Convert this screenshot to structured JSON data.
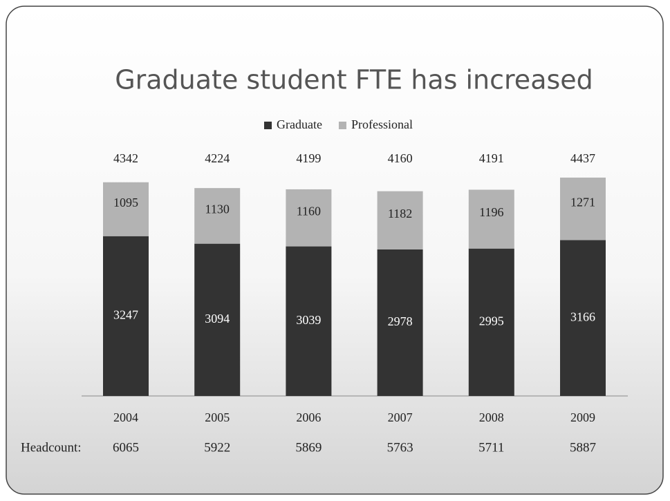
{
  "chart_data": {
    "type": "stacked-bar",
    "title": "Graduate student FTE has increased",
    "categories": [
      "2004",
      "2005",
      "2006",
      "2007",
      "2008",
      "2009"
    ],
    "series": [
      {
        "name": "Graduate",
        "color": "#333333",
        "values": [
          3247,
          3094,
          3039,
          2978,
          2995,
          3166
        ]
      },
      {
        "name": "Professional",
        "color": "#b3b3b3",
        "values": [
          1095,
          1130,
          1160,
          1182,
          1196,
          1271
        ]
      }
    ],
    "totals": [
      4342,
      4224,
      4199,
      4160,
      4191,
      4437
    ],
    "headcount": {
      "label": "Headcount:",
      "values": [
        6065,
        5922,
        5869,
        5763,
        5711,
        5887
      ]
    },
    "legend": "top"
  }
}
